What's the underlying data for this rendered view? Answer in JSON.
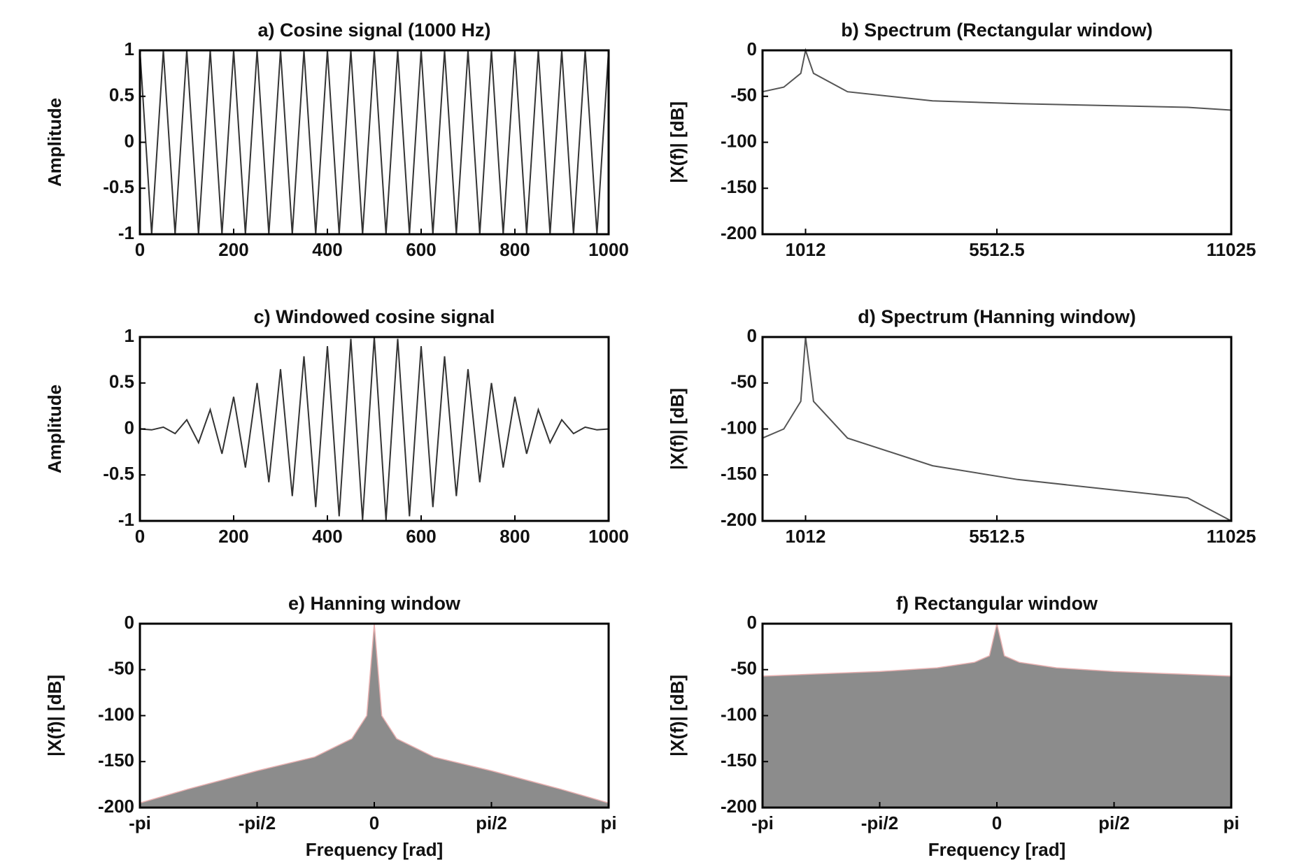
{
  "chart_data": [
    {
      "type": "line",
      "title": "a) Cosine signal (1000 Hz)",
      "ylabel": "Amplitude",
      "color": "#333333",
      "x": [
        0,
        25,
        50,
        75,
        100,
        125,
        150,
        175,
        200,
        225,
        250,
        275,
        300,
        325,
        350,
        375,
        400,
        425,
        450,
        475,
        500,
        525,
        550,
        575,
        600,
        625,
        650,
        675,
        700,
        725,
        750,
        775,
        800,
        825,
        850,
        875,
        900,
        925,
        950,
        975,
        1000
      ],
      "values": [
        1,
        -1,
        1,
        -1,
        1,
        -1,
        1,
        -1,
        1,
        -1,
        1,
        -1,
        1,
        -1,
        1,
        -1,
        1,
        -1,
        1,
        -1,
        1,
        -1,
        1,
        -1,
        1,
        -1,
        1,
        -1,
        1,
        -1,
        1,
        -1,
        1,
        -1,
        1,
        -1,
        1,
        -1,
        1,
        -1,
        1
      ],
      "xlim": [
        0,
        1000
      ],
      "xticks": [
        0,
        200,
        400,
        600,
        800,
        1000
      ],
      "ylim": [
        -1,
        1
      ],
      "yticks": [
        -1,
        -0.5,
        0,
        0.5,
        1
      ]
    },
    {
      "type": "line",
      "title": "b) Spectrum (Rectangular window)",
      "ylabel": "|X(f)| [dB]",
      "color": "#555555",
      "x": [
        0,
        500,
        900,
        1012,
        1200,
        2000,
        4000,
        6000,
        8000,
        10000,
        11025
      ],
      "values": [
        -45,
        -40,
        -25,
        0,
        -25,
        -45,
        -55,
        -58,
        -60,
        -62,
        -65
      ],
      "xlim": [
        0,
        11025
      ],
      "xticks": [
        1012,
        5512.5,
        11025
      ],
      "ylim": [
        -200,
        0
      ],
      "yticks": [
        -200,
        -150,
        -100,
        -50,
        0
      ]
    },
    {
      "type": "line",
      "title": "c) Windowed cosine signal",
      "ylabel": "Amplitude",
      "color": "#333333",
      "x": [
        0,
        25,
        50,
        75,
        100,
        125,
        150,
        175,
        200,
        225,
        250,
        275,
        300,
        325,
        350,
        375,
        400,
        425,
        450,
        475,
        500,
        525,
        550,
        575,
        600,
        625,
        650,
        675,
        700,
        725,
        750,
        775,
        800,
        825,
        850,
        875,
        900,
        925,
        950,
        975,
        1000
      ],
      "values": [
        0,
        -0.01,
        0.02,
        -0.05,
        0.1,
        -0.15,
        0.21,
        -0.27,
        0.35,
        -0.42,
        0.5,
        -0.58,
        0.65,
        -0.73,
        0.79,
        -0.85,
        0.9,
        -0.95,
        0.98,
        -0.99,
        1,
        -0.99,
        0.98,
        -0.95,
        0.9,
        -0.85,
        0.79,
        -0.73,
        0.65,
        -0.58,
        0.5,
        -0.42,
        0.35,
        -0.27,
        0.21,
        -0.15,
        0.1,
        -0.05,
        0.02,
        -0.01,
        0
      ],
      "xlim": [
        0,
        1000
      ],
      "xticks": [
        0,
        200,
        400,
        600,
        800,
        1000
      ],
      "ylim": [
        -1,
        1
      ],
      "yticks": [
        -1,
        -0.5,
        0,
        0.5,
        1
      ]
    },
    {
      "type": "line",
      "title": "d) Spectrum (Hanning window)",
      "ylabel": "|X(f)| [dB]",
      "color": "#555555",
      "x": [
        0,
        500,
        900,
        1012,
        1200,
        2000,
        4000,
        6000,
        8000,
        10000,
        11025
      ],
      "values": [
        -110,
        -100,
        -70,
        0,
        -70,
        -110,
        -140,
        -155,
        -165,
        -175,
        -200
      ],
      "xlim": [
        0,
        11025
      ],
      "xticks": [
        1012,
        5512.5,
        11025
      ],
      "ylim": [
        -200,
        0
      ],
      "yticks": [
        -200,
        -150,
        -100,
        -50,
        0
      ]
    },
    {
      "type": "area",
      "title": "e) Hanning window",
      "ylabel": "|X(f)| [dB]",
      "xlabel": "Frequency [rad]",
      "color": "#8c8c8c",
      "x": [
        -3.1416,
        -2.5,
        -1.5708,
        -0.8,
        -0.3,
        -0.1,
        0,
        0.1,
        0.3,
        0.8,
        1.5708,
        2.5,
        3.1416
      ],
      "values": [
        -195,
        -180,
        -160,
        -145,
        -125,
        -100,
        0,
        -100,
        -125,
        -145,
        -160,
        -180,
        -195
      ],
      "xlim": [
        -3.1416,
        3.1416
      ],
      "xticks": [
        {
          "value": -3.1416,
          "label": "-pi"
        },
        {
          "value": -1.5708,
          "label": "-pi/2"
        },
        0,
        {
          "value": 1.5708,
          "label": "pi/2"
        },
        {
          "value": 3.1416,
          "label": "pi"
        }
      ],
      "ylim": [
        -200,
        0
      ],
      "yticks": [
        -200,
        -150,
        -100,
        -50,
        0
      ]
    },
    {
      "type": "area",
      "title": "f) Rectangular window",
      "ylabel": "|X(f)| [dB]",
      "xlabel": "Frequency [rad]",
      "color": "#8c8c8c",
      "x": [
        -3.1416,
        -2.5,
        -1.5708,
        -0.8,
        -0.3,
        -0.1,
        0,
        0.1,
        0.3,
        0.8,
        1.5708,
        2.5,
        3.1416
      ],
      "values": [
        -57,
        -55,
        -52,
        -48,
        -42,
        -35,
        0,
        -35,
        -42,
        -48,
        -52,
        -55,
        -57
      ],
      "xlim": [
        -3.1416,
        3.1416
      ],
      "xticks": [
        {
          "value": -3.1416,
          "label": "-pi"
        },
        {
          "value": -1.5708,
          "label": "-pi/2"
        },
        0,
        {
          "value": 1.5708,
          "label": "pi/2"
        },
        {
          "value": 3.1416,
          "label": "pi"
        }
      ],
      "ylim": [
        -200,
        0
      ],
      "yticks": [
        -200,
        -150,
        -100,
        -50,
        0
      ]
    }
  ]
}
